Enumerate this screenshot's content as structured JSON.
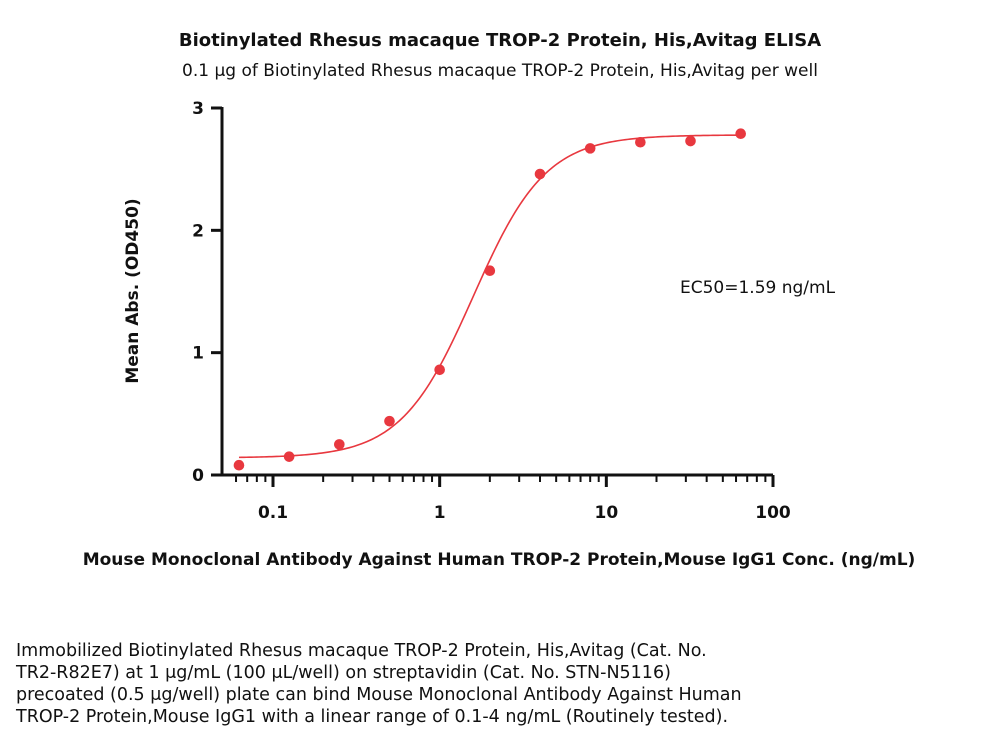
{
  "chart_data": {
    "type": "scatter",
    "title": "Biotinylated Rhesus macaque TROP-2 Protein, His,Avitag ELISA",
    "subtitle": "0.1 μg of Biotinylated Rhesus macaque TROP-2 Protein, His,Avitag per well",
    "xlabel": "Mouse Monoclonal Antibody Against Human TROP-2 Protein,Mouse IgG1 Conc. (ng/mL)",
    "ylabel": "Mean Abs. (OD450)",
    "x_scale": "log",
    "xlim": [
      0.05,
      100
    ],
    "ylim": [
      0,
      3
    ],
    "x_ticks": [
      0.1,
      1,
      10,
      100
    ],
    "x_tick_labels": [
      "0.1",
      "1",
      "10",
      "100"
    ],
    "y_ticks": [
      0,
      1,
      2,
      3
    ],
    "y_tick_labels": [
      "0",
      "1",
      "2",
      "3"
    ],
    "grid": false,
    "color": "#e8383f",
    "points": [
      {
        "x": 0.0625,
        "y": 0.08
      },
      {
        "x": 0.125,
        "y": 0.15
      },
      {
        "x": 0.25,
        "y": 0.25
      },
      {
        "x": 0.5,
        "y": 0.44
      },
      {
        "x": 1,
        "y": 0.86
      },
      {
        "x": 2,
        "y": 1.67
      },
      {
        "x": 4,
        "y": 2.46
      },
      {
        "x": 8,
        "y": 2.67
      },
      {
        "x": 16,
        "y": 2.72
      },
      {
        "x": 32,
        "y": 2.73
      },
      {
        "x": 64,
        "y": 2.79
      }
    ],
    "fit_curve": {
      "model": "4PL",
      "bottom": 0.14,
      "top": 2.78,
      "ec50": 1.59,
      "hill": 2.0
    },
    "annotation": "EC50=1.59 ng/mL"
  },
  "caption": {
    "lines": [
      "Immobilized Biotinylated Rhesus macaque TROP-2 Protein, His,Avitag (Cat. No.",
      "TR2-R82E7) at 1 μg/mL (100 μL/well) on streptavidin (Cat. No. STN-N5116)",
      "precoated (0.5 μg/well) plate can bind Mouse Monoclonal Antibody Against Human",
      "TROP-2 Protein,Mouse IgG1 with a linear range of 0.1-4 ng/mL (Routinely tested)."
    ]
  }
}
